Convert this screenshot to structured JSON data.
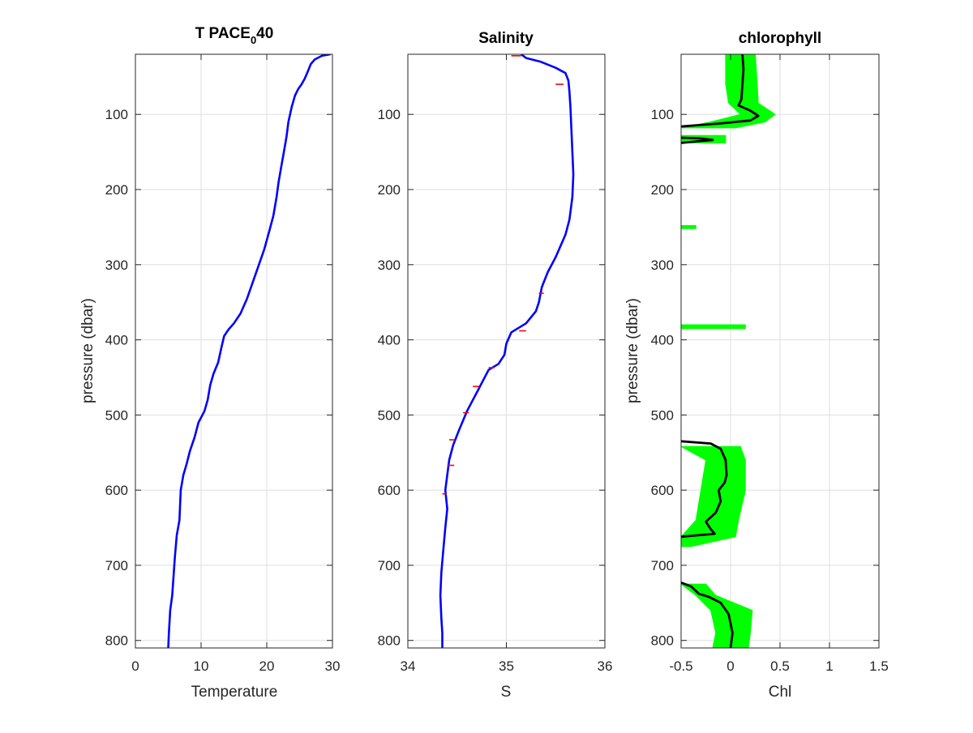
{
  "colors": {
    "frame": "#262626",
    "grid": "#dfdfdf",
    "temperature_line": "#0000ff",
    "salinity_line": "#0000ff",
    "salinity_spikes": "#ff0000",
    "chl_envelope": "#00ff00",
    "chl_line": "#000000"
  },
  "chart_data": [
    {
      "type": "line",
      "title_main": "T PACE",
      "title_sub": "0",
      "title_tail": "40",
      "xlabel": "Temperature",
      "ylabel": "pressure (dbar)",
      "xlim": [
        0,
        30
      ],
      "ylim": [
        20,
        810
      ],
      "y_reversed": true,
      "grid": true,
      "xticks": [
        "0",
        "10",
        "20",
        "30"
      ],
      "yticks": [
        "100",
        "200",
        "300",
        "400",
        "500",
        "600",
        "700",
        "800"
      ],
      "series": [
        {
          "points": [
            [
              29.7,
              20
            ],
            [
              28.4,
              22
            ],
            [
              27.3,
              27
            ],
            [
              26.7,
              33
            ],
            [
              26.3,
              42
            ],
            [
              25.8,
              52
            ],
            [
              25.3,
              60
            ],
            [
              24.8,
              66
            ],
            [
              24.3,
              75
            ],
            [
              23.8,
              90
            ],
            [
              23.3,
              110
            ],
            [
              23.0,
              130
            ],
            [
              22.6,
              150
            ],
            [
              22.2,
              170
            ],
            [
              21.8,
              190
            ],
            [
              21.5,
              210
            ],
            [
              21.0,
              235
            ],
            [
              20.4,
              255
            ],
            [
              19.6,
              280
            ],
            [
              18.8,
              300
            ],
            [
              18.0,
              320
            ],
            [
              17.0,
              345
            ],
            [
              16.0,
              365
            ],
            [
              15.0,
              378
            ],
            [
              14.2,
              386
            ],
            [
              13.5,
              395
            ],
            [
              13.1,
              410
            ],
            [
              12.6,
              430
            ],
            [
              11.9,
              445
            ],
            [
              11.4,
              460
            ],
            [
              11.0,
              480
            ],
            [
              10.5,
              495
            ],
            [
              9.6,
              510
            ],
            [
              9.0,
              530
            ],
            [
              8.3,
              548
            ],
            [
              7.8,
              565
            ],
            [
              7.3,
              580
            ],
            [
              6.9,
              600
            ],
            [
              6.8,
              620
            ],
            [
              6.7,
              640
            ],
            [
              6.3,
              660
            ],
            [
              6.0,
              690
            ],
            [
              5.8,
              715
            ],
            [
              5.6,
              740
            ],
            [
              5.3,
              760
            ],
            [
              5.1,
              790
            ],
            [
              5.0,
              810
            ]
          ]
        }
      ]
    },
    {
      "type": "line",
      "title": "Salinity",
      "xlabel": "S",
      "ylabel": "",
      "xlim": [
        34,
        36
      ],
      "ylim": [
        20,
        810
      ],
      "y_reversed": true,
      "grid": true,
      "xticks": [
        "34",
        "35",
        "36"
      ],
      "yticks": [
        "100",
        "200",
        "300",
        "400",
        "500",
        "600",
        "700",
        "800"
      ],
      "series": [
        {
          "points": [
            [
              35.15,
              20
            ],
            [
              35.2,
              25
            ],
            [
              35.35,
              30
            ],
            [
              35.5,
              38
            ],
            [
              35.6,
              45
            ],
            [
              35.63,
              55
            ],
            [
              35.64,
              70
            ],
            [
              35.65,
              90
            ],
            [
              35.66,
              120
            ],
            [
              35.67,
              150
            ],
            [
              35.68,
              180
            ],
            [
              35.67,
              210
            ],
            [
              35.64,
              240
            ],
            [
              35.6,
              260
            ],
            [
              35.5,
              290
            ],
            [
              35.42,
              310
            ],
            [
              35.36,
              330
            ],
            [
              35.33,
              350
            ],
            [
              35.3,
              362
            ],
            [
              35.2,
              378
            ],
            [
              35.05,
              390
            ],
            [
              35.0,
              405
            ],
            [
              34.98,
              420
            ],
            [
              34.92,
              432
            ],
            [
              34.82,
              440
            ],
            [
              34.76,
              455
            ],
            [
              34.7,
              470
            ],
            [
              34.6,
              495
            ],
            [
              34.52,
              520
            ],
            [
              34.46,
              540
            ],
            [
              34.42,
              560
            ],
            [
              34.4,
              580
            ],
            [
              34.38,
              600
            ],
            [
              34.4,
              625
            ],
            [
              34.38,
              650
            ],
            [
              34.36,
              680
            ],
            [
              34.34,
              710
            ],
            [
              34.33,
              740
            ],
            [
              34.34,
              770
            ],
            [
              34.35,
              790
            ],
            [
              34.35,
              810
            ]
          ]
        }
      ],
      "spikes": [
        [
          35.15,
          22,
          35.05
        ],
        [
          35.58,
          60,
          35.5
        ],
        [
          35.38,
          338,
          35.33
        ],
        [
          35.2,
          388,
          35.13
        ],
        [
          34.82,
          437,
          34.88
        ],
        [
          34.72,
          462,
          34.66
        ],
        [
          34.62,
          497,
          34.56
        ],
        [
          34.48,
          533,
          34.42
        ],
        [
          34.47,
          567,
          34.4
        ],
        [
          34.39,
          605,
          34.35
        ]
      ]
    },
    {
      "type": "line",
      "title": "chlorophyll",
      "xlabel": "Chl",
      "ylabel": "pressure (dbar)",
      "xlim": [
        -0.5,
        1.5
      ],
      "ylim": [
        20,
        810
      ],
      "y_reversed": true,
      "grid": true,
      "xticks": [
        "-0.5",
        "0",
        "0.5",
        "1",
        "1.5"
      ],
      "yticks": [
        "100",
        "200",
        "300",
        "400",
        "500",
        "600",
        "700",
        "800"
      ],
      "segments": [
        [
          [
            0.12,
            20
          ],
          [
            0.13,
            40
          ],
          [
            0.12,
            60
          ],
          [
            0.11,
            80
          ],
          [
            0.08,
            88
          ],
          [
            0.2,
            95
          ],
          [
            0.28,
            102
          ],
          [
            0.2,
            108
          ],
          [
            -0.1,
            112
          ],
          [
            -0.5,
            116
          ]
        ],
        [
          [
            -0.5,
            131
          ],
          [
            -0.3,
            132
          ],
          [
            -0.18,
            134
          ],
          [
            -0.35,
            136
          ],
          [
            -0.5,
            138
          ]
        ],
        [
          [
            -0.5,
            535
          ],
          [
            -0.2,
            538
          ],
          [
            -0.1,
            545
          ],
          [
            -0.05,
            560
          ],
          [
            -0.04,
            580
          ],
          [
            -0.06,
            590
          ],
          [
            -0.12,
            600
          ],
          [
            -0.1,
            615
          ],
          [
            -0.15,
            630
          ],
          [
            -0.25,
            642
          ],
          [
            -0.2,
            652
          ],
          [
            -0.16,
            658
          ],
          [
            -0.5,
            662
          ]
        ],
        [
          [
            -0.5,
            723
          ],
          [
            -0.4,
            728
          ],
          [
            -0.32,
            738
          ],
          [
            -0.22,
            742
          ],
          [
            -0.1,
            750
          ],
          [
            -0.02,
            765
          ],
          [
            0.02,
            790
          ],
          [
            0.0,
            810
          ]
        ]
      ],
      "envelopes": [
        [
          [
            -0.05,
            0.25,
            20
          ],
          [
            -0.05,
            0.27,
            60
          ],
          [
            -0.02,
            0.28,
            85
          ],
          [
            0.1,
            0.45,
            100
          ],
          [
            -0.2,
            0.35,
            110
          ],
          [
            -0.5,
            0.05,
            118
          ]
        ],
        [
          [
            -0.5,
            -0.05,
            128
          ],
          [
            -0.5,
            -0.05,
            138
          ]
        ],
        [
          [
            -0.5,
            -0.35,
            248
          ],
          [
            -0.5,
            -0.35,
            252
          ]
        ],
        [
          [
            -0.5,
            0.15,
            380
          ],
          [
            -0.5,
            0.15,
            385
          ]
        ],
        [
          [
            -0.5,
            0.1,
            542
          ],
          [
            -0.25,
            0.15,
            560
          ],
          [
            -0.3,
            0.15,
            600
          ],
          [
            -0.35,
            0.08,
            640
          ],
          [
            -0.5,
            0.05,
            662
          ],
          [
            -0.5,
            -0.4,
            675
          ]
        ],
        [
          [
            -0.5,
            -0.25,
            725
          ],
          [
            -0.35,
            -0.15,
            740
          ],
          [
            -0.2,
            0.22,
            760
          ],
          [
            -0.15,
            0.2,
            790
          ],
          [
            -0.18,
            0.18,
            810
          ]
        ]
      ]
    }
  ]
}
